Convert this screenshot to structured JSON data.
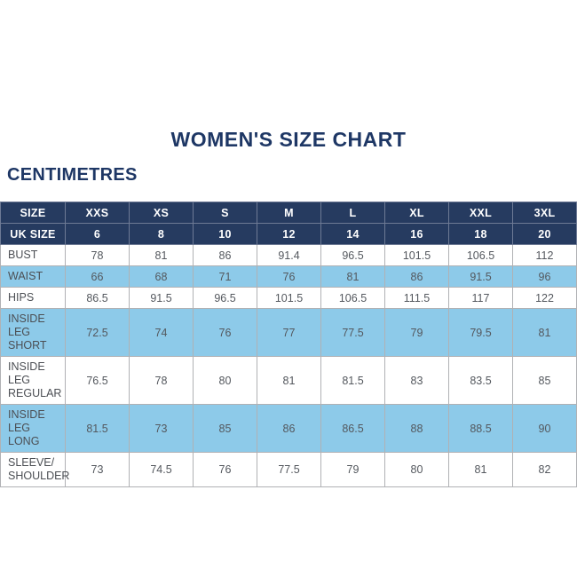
{
  "header": {
    "title": "WOMEN'S SIZE CHART",
    "units_label": "CENTIMETRES"
  },
  "colors": {
    "navy_text": "#1e3765",
    "header_bg": "#263b60",
    "header_divider": "#6e7a95",
    "row_alt_bg": "#8dcae9",
    "row_bg": "#ffffff",
    "body_text": "#54585e",
    "body_border": "#b0b1b4"
  },
  "chart_data": {
    "type": "table",
    "title": "WOMEN'S SIZE CHART",
    "units": "CENTIMETRES",
    "columns": [
      "SIZE",
      "XXS",
      "XS",
      "S",
      "M",
      "L",
      "XL",
      "XXL",
      "3XL"
    ],
    "uk_size_row": {
      "label": "UK SIZE",
      "values": [
        "6",
        "8",
        "10",
        "12",
        "14",
        "16",
        "18",
        "20"
      ]
    },
    "rows": [
      {
        "label": "BUST",
        "values": [
          "78",
          "81",
          "86",
          "91.4",
          "96.5",
          "101.5",
          "106.5",
          "112"
        ]
      },
      {
        "label": "WAIST",
        "values": [
          "66",
          "68",
          "71",
          "76",
          "81",
          "86",
          "91.5",
          "96"
        ]
      },
      {
        "label": "HIPS",
        "values": [
          "86.5",
          "91.5",
          "96.5",
          "101.5",
          "106.5",
          "111.5",
          "117",
          "122"
        ]
      },
      {
        "label": "INSIDE LEG\nSHORT",
        "values": [
          "72.5",
          "74",
          "76",
          "77",
          "77.5",
          "79",
          "79.5",
          "81"
        ]
      },
      {
        "label": "INSIDE LEG\nREGULAR",
        "values": [
          "76.5",
          "78",
          "80",
          "81",
          "81.5",
          "83",
          "83.5",
          "85"
        ]
      },
      {
        "label": "INSIDE LEG\nLONG",
        "values": [
          "81.5",
          "73",
          "85",
          "86",
          "86.5",
          "88",
          "88.5",
          "90"
        ]
      },
      {
        "label": "SLEEVE/\nSHOULDER",
        "values": [
          "73",
          "74.5",
          "76",
          "77.5",
          "79",
          "80",
          "81",
          "82"
        ]
      }
    ]
  }
}
